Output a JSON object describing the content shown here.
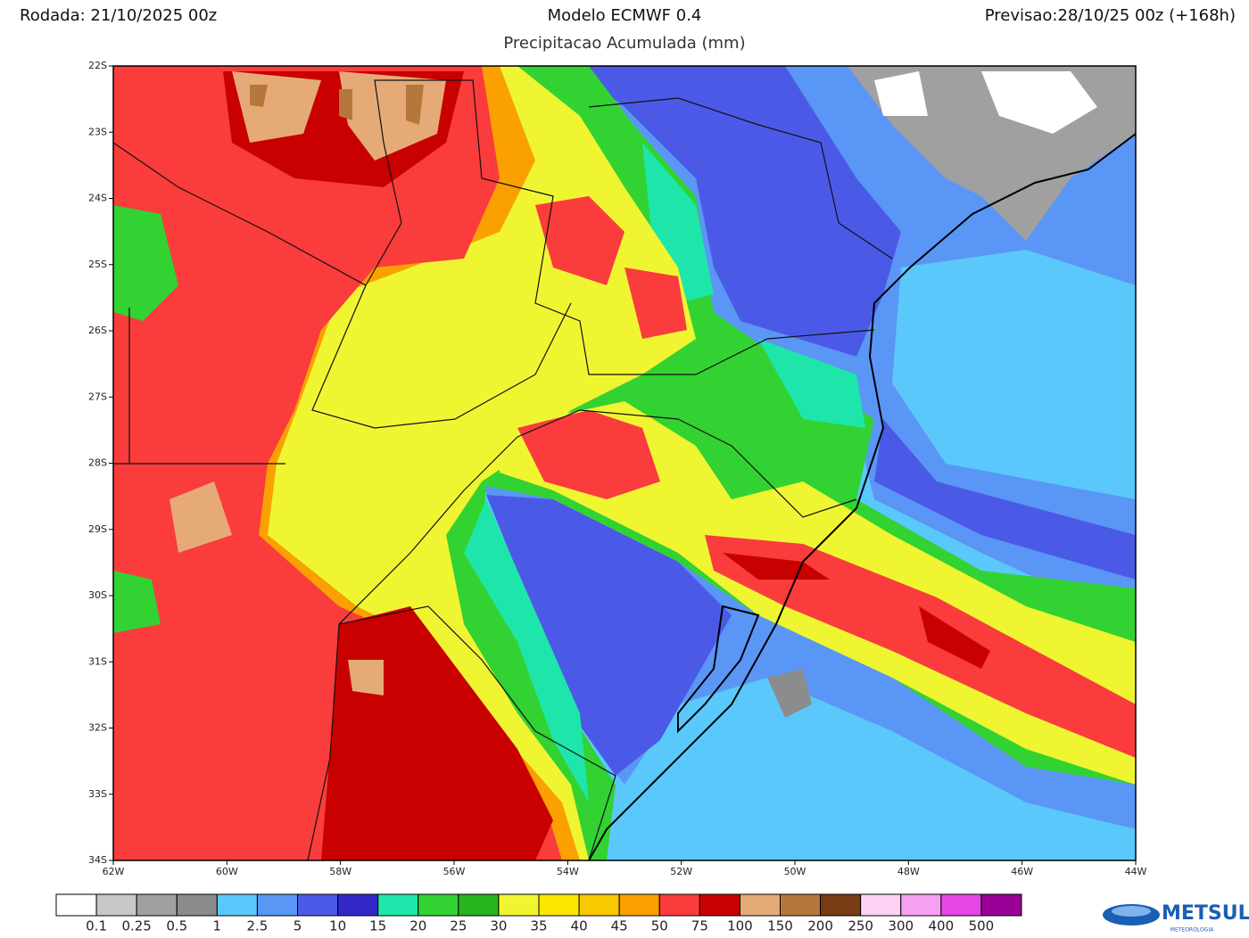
{
  "header": {
    "left": "Rodada: 21/10/2025 00z",
    "center": "Modelo ECMWF 0.4",
    "right": "Previsao:28/10/25 00z (+168h)",
    "subtitle": "Precipitacao Acumulada (mm)"
  },
  "map": {
    "lat_labels": [
      "22S",
      "23S",
      "24S",
      "25S",
      "26S",
      "27S",
      "28S",
      "29S",
      "30S",
      "31S",
      "32S",
      "33S",
      "34S"
    ],
    "lon_labels": [
      "62W",
      "60W",
      "58W",
      "56W",
      "54W",
      "52W",
      "50W",
      "48W",
      "46W",
      "44W"
    ]
  },
  "colorbar": {
    "colors": [
      "#ffffff",
      "#c8c8c8",
      "#a0a0a0",
      "#8c8c8c",
      "#5ac8fa",
      "#5a96f5",
      "#4b5ae6",
      "#3228c8",
      "#1ee6aa",
      "#32d232",
      "#28b41e",
      "#f0f532",
      "#fae600",
      "#fac800",
      "#faa000",
      "#fa3c3c",
      "#c80000",
      "#e6aa78",
      "#b4783c",
      "#783c14",
      "#ffd2f5",
      "#f5a0f0",
      "#e646e6",
      "#9b0096"
    ],
    "labels": [
      "0.1",
      "0.25",
      "0.5",
      "1",
      "2.5",
      "5",
      "10",
      "15",
      "20",
      "25",
      "30",
      "35",
      "40",
      "45",
      "50",
      "75",
      "100",
      "150",
      "200",
      "250",
      "300",
      "400",
      "500"
    ]
  },
  "logo": {
    "name": "METSUL",
    "tagline": "METEOROLOGIA"
  }
}
